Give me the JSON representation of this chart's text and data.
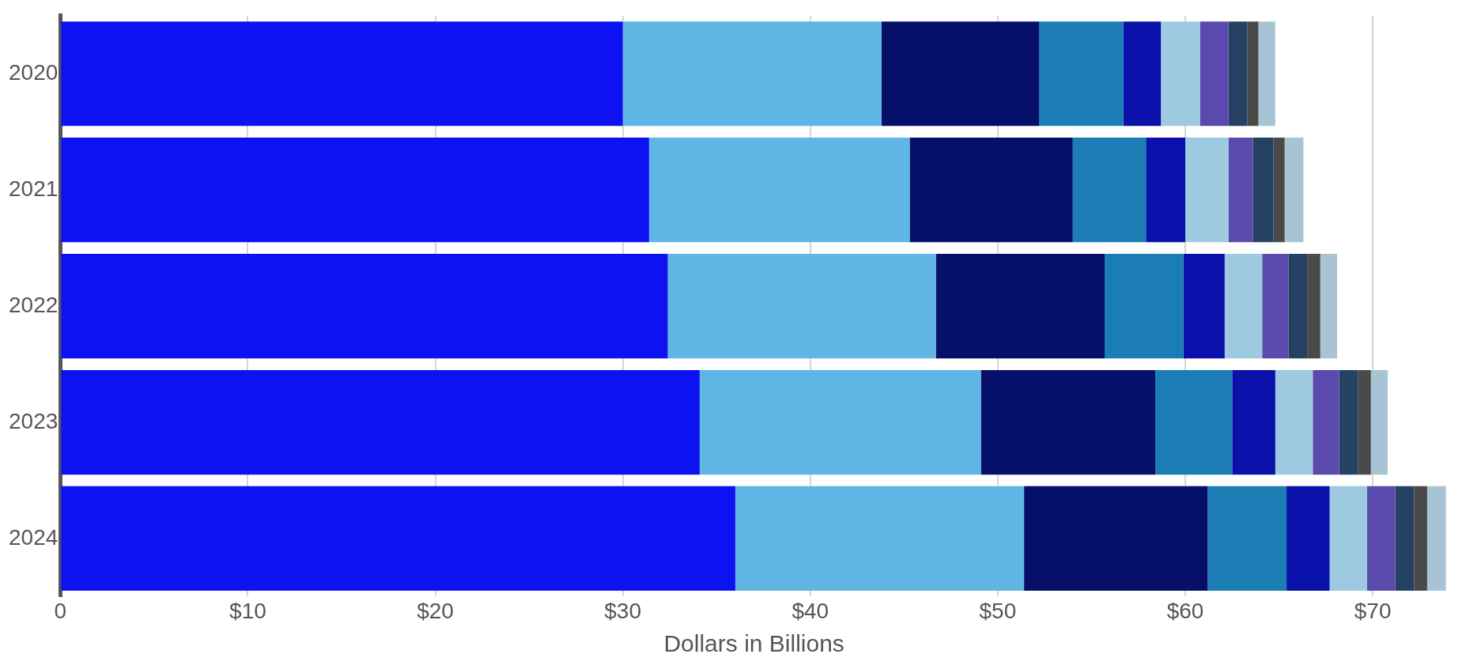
{
  "chart_data": {
    "type": "bar",
    "orientation": "horizontal",
    "stacked": true,
    "xlabel": "Dollars in Billions",
    "categories": [
      "2020",
      "2021",
      "2022",
      "2023",
      "2024"
    ],
    "series": [
      {
        "color": "#0d12f2",
        "values": [
          30.0,
          31.4,
          32.4,
          34.1,
          36.0
        ]
      },
      {
        "color": "#5fb5e3",
        "values": [
          13.8,
          13.9,
          14.3,
          15.0,
          15.4
        ]
      },
      {
        "color": "#060f6a",
        "values": [
          8.4,
          8.7,
          9.0,
          9.3,
          9.8
        ]
      },
      {
        "color": "#1b7db4",
        "values": [
          4.5,
          3.9,
          4.2,
          4.1,
          4.2
        ]
      },
      {
        "color": "#0a10aa",
        "values": [
          2.0,
          2.1,
          2.2,
          2.3,
          2.3
        ]
      },
      {
        "color": "#9ecae1",
        "values": [
          2.1,
          2.3,
          2.0,
          2.0,
          2.0
        ]
      },
      {
        "color": "#5a4aad",
        "values": [
          1.5,
          1.3,
          1.4,
          1.4,
          1.5
        ]
      },
      {
        "color": "#264262",
        "values": [
          1.0,
          1.1,
          1.0,
          1.0,
          1.0
        ]
      },
      {
        "color": "#4a4a4a",
        "values": [
          0.6,
          0.6,
          0.7,
          0.7,
          0.7
        ]
      },
      {
        "color": "#a8c4d4",
        "values": [
          0.9,
          1.0,
          0.9,
          0.9,
          1.0
        ]
      }
    ],
    "xlim": [
      0,
      74
    ],
    "xticks": [
      0,
      {
        "value": 10,
        "label": "$10"
      },
      {
        "value": 20,
        "label": "$20"
      },
      {
        "value": 30,
        "label": "$30"
      },
      {
        "value": 40,
        "label": "$40"
      },
      {
        "value": 50,
        "label": "$50"
      },
      {
        "value": 60,
        "label": "$60"
      },
      {
        "value": 70,
        "label": "$70"
      }
    ],
    "grid": "x",
    "legend": false
  }
}
